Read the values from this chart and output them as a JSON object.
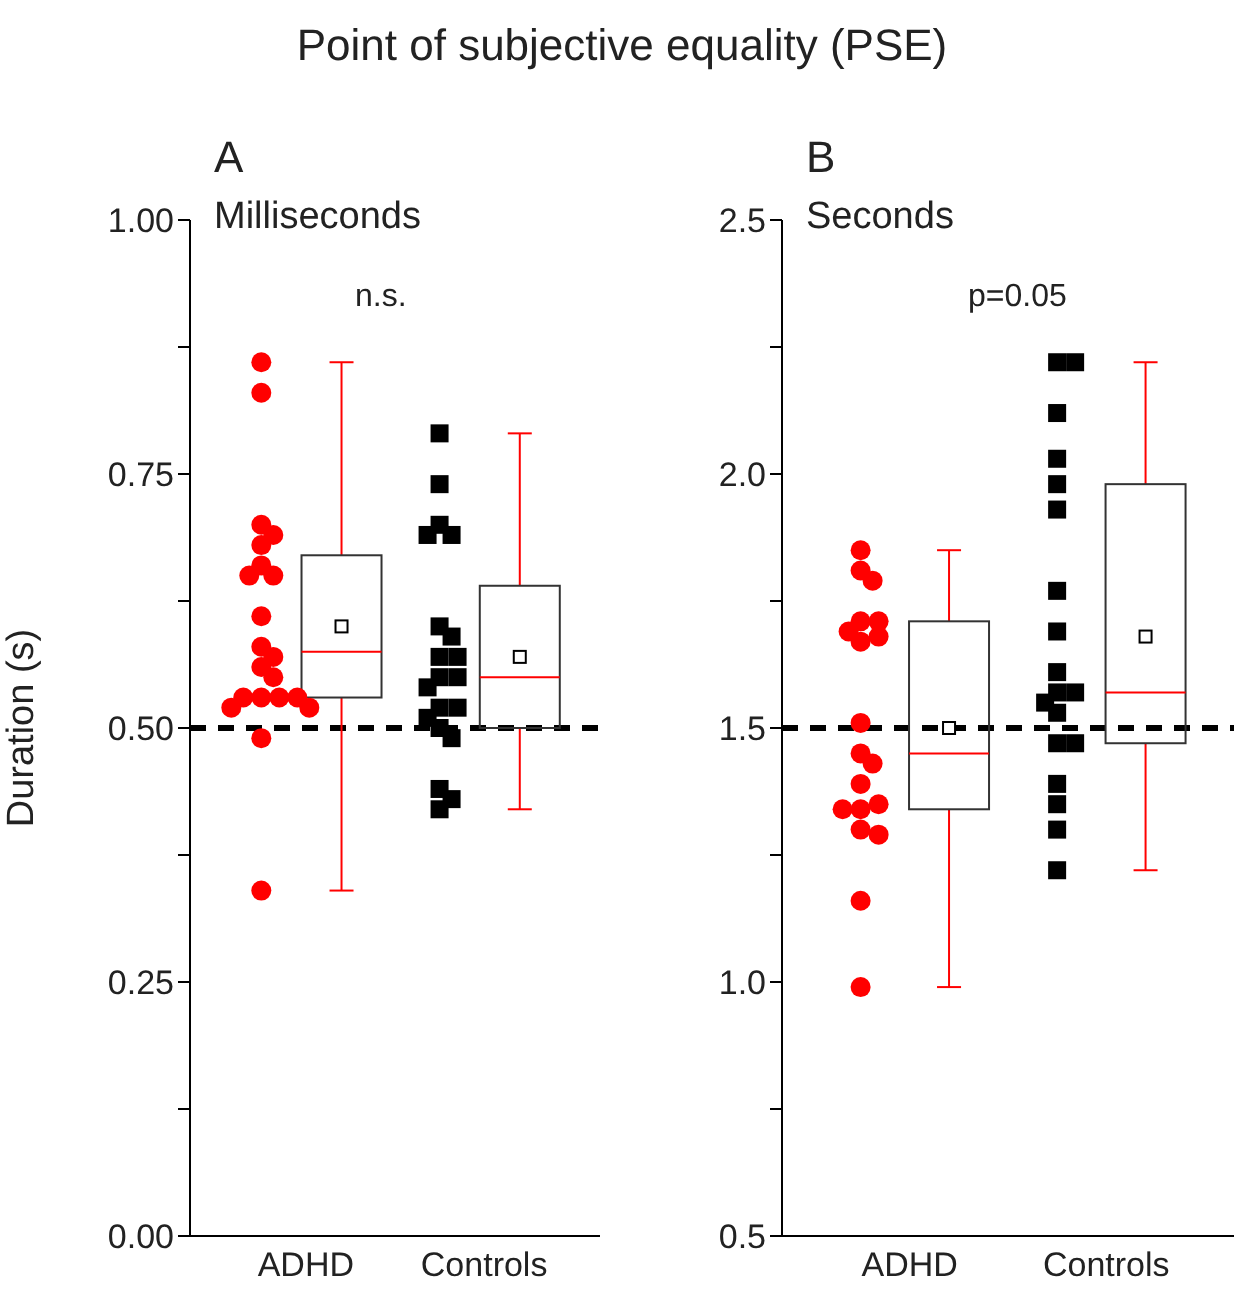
{
  "chart_data": [
    {
      "type": "box",
      "title": "Point of subjective equality (PSE)",
      "subtitle": "Milliseconds",
      "ylabel": "Duration (s)",
      "annotations": [
        "A",
        "n.s."
      ],
      "categories": [
        "ADHD",
        "Controls"
      ],
      "boxes": [
        {
          "low": 0.34,
          "q1": 0.53,
          "median": 0.575,
          "q3": 0.67,
          "high": 0.86,
          "mean": 0.6
        },
        {
          "low": 0.42,
          "q1": 0.5,
          "median": 0.55,
          "q3": 0.64,
          "high": 0.79,
          "mean": 0.57
        }
      ],
      "series": [
        {
          "type": "scatter",
          "marker": "circle",
          "color": "#ff0000",
          "x": [
            "ADHD",
            "ADHD",
            "ADHD",
            "ADHD",
            "ADHD",
            "ADHD",
            "ADHD",
            "ADHD",
            "ADHD",
            "ADHD",
            "ADHD",
            "ADHD",
            "ADHD",
            "ADHD",
            "ADHD",
            "ADHD",
            "ADHD",
            "ADHD",
            "ADHD",
            "ADHD",
            "ADHD"
          ],
          "values": [
            0.86,
            0.83,
            0.7,
            0.69,
            0.68,
            0.66,
            0.65,
            0.65,
            0.61,
            0.58,
            0.57,
            0.56,
            0.55,
            0.53,
            0.53,
            0.53,
            0.53,
            0.52,
            0.52,
            0.49,
            0.34
          ]
        },
        {
          "type": "scatter",
          "marker": "square",
          "color": "#000000",
          "x": [
            "Controls",
            "Controls",
            "Controls",
            "Controls",
            "Controls",
            "Controls",
            "Controls",
            "Controls",
            "Controls",
            "Controls",
            "Controls",
            "Controls",
            "Controls",
            "Controls",
            "Controls",
            "Controls",
            "Controls",
            "Controls",
            "Controls",
            "Controls"
          ],
          "values": [
            0.79,
            0.74,
            0.7,
            0.69,
            0.69,
            0.6,
            0.59,
            0.57,
            0.57,
            0.55,
            0.55,
            0.54,
            0.52,
            0.52,
            0.51,
            0.5,
            0.49,
            0.44,
            0.43,
            0.42
          ]
        }
      ],
      "ylim": [
        0,
        1
      ],
      "yticks": [
        {
          "value": 0,
          "label": "0.00"
        },
        {
          "value": 0.125,
          "label": null
        },
        {
          "value": 0.25,
          "label": "0.25"
        },
        {
          "value": 0.375,
          "label": null
        },
        {
          "value": 0.5,
          "label": "0.50"
        },
        {
          "value": 0.625,
          "label": null
        },
        {
          "value": 0.75,
          "label": "0.75"
        },
        {
          "value": 0.875,
          "label": null
        },
        {
          "value": 1,
          "label": "1.00"
        }
      ],
      "ref_lines": [
        {
          "axis": "y",
          "value": 0.5,
          "color": "#000000",
          "line_style": "dashed"
        }
      ]
    },
    {
      "type": "box",
      "subtitle": "Seconds",
      "annotations": [
        "B",
        "p=0.05"
      ],
      "categories": [
        "ADHD",
        "Controls"
      ],
      "boxes": [
        {
          "low": 0.99,
          "q1": 1.34,
          "median": 1.45,
          "q3": 1.71,
          "high": 1.85,
          "mean": 1.5
        },
        {
          "low": 1.22,
          "q1": 1.47,
          "median": 1.57,
          "q3": 1.98,
          "high": 2.22,
          "mean": 1.68
        }
      ],
      "series": [
        {
          "type": "scatter",
          "marker": "circle",
          "color": "#ff0000",
          "x": [
            "ADHD",
            "ADHD",
            "ADHD",
            "ADHD",
            "ADHD",
            "ADHD",
            "ADHD",
            "ADHD",
            "ADHD",
            "ADHD",
            "ADHD",
            "ADHD",
            "ADHD",
            "ADHD",
            "ADHD",
            "ADHD",
            "ADHD",
            "ADHD",
            "ADHD"
          ],
          "values": [
            1.85,
            1.81,
            1.79,
            1.71,
            1.71,
            1.69,
            1.67,
            1.68,
            1.51,
            1.45,
            1.43,
            1.39,
            1.34,
            1.35,
            1.34,
            1.3,
            1.29,
            1.16,
            0.99
          ]
        },
        {
          "type": "scatter",
          "marker": "square",
          "color": "#000000",
          "x": [
            "Controls",
            "Controls",
            "Controls",
            "Controls",
            "Controls",
            "Controls",
            "Controls",
            "Controls",
            "Controls",
            "Controls",
            "Controls",
            "Controls",
            "Controls",
            "Controls",
            "Controls",
            "Controls",
            "Controls",
            "Controls",
            "Controls"
          ],
          "values": [
            2.22,
            2.22,
            2.12,
            2.03,
            1.98,
            1.93,
            1.77,
            1.69,
            1.61,
            1.57,
            1.57,
            1.53,
            1.55,
            1.47,
            1.47,
            1.39,
            1.35,
            1.3,
            1.22
          ]
        }
      ],
      "ylim": [
        0.5,
        2.5
      ],
      "yticks": [
        0.5,
        {
          "value": 0.75,
          "label": null
        },
        {
          "value": 1,
          "label": "1.0"
        },
        {
          "value": 1.25,
          "label": null
        },
        1.5,
        {
          "value": 1.75,
          "label": null
        },
        {
          "value": 2,
          "label": "2.0"
        },
        {
          "value": 2.25,
          "label": null
        },
        2.5
      ],
      "ref_lines": [
        {
          "axis": "y",
          "value": 1.5,
          "color": "#000000",
          "line_style": "dashed"
        }
      ]
    }
  ]
}
